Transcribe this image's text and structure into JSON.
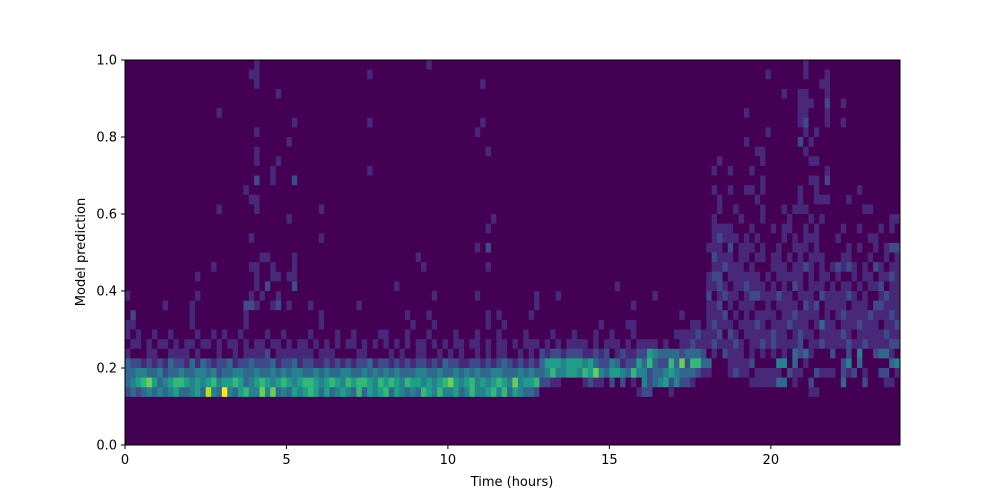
{
  "chart_data": {
    "type": "heatmap",
    "title": "",
    "xlabel": "Time (hours)",
    "ylabel": "Model prediction",
    "xlim": [
      0,
      24
    ],
    "ylim": [
      0,
      1
    ],
    "x_bins": 144,
    "y_bins": 40,
    "x_ticks": [
      "0",
      "5",
      "10",
      "15",
      "20"
    ],
    "x_tick_values": [
      0,
      5,
      10,
      15,
      20
    ],
    "y_ticks": [
      "0.0",
      "0.2",
      "0.4",
      "0.6",
      "0.8",
      "1.0"
    ],
    "y_tick_values": [
      0,
      0.2,
      0.4,
      0.6,
      0.8,
      1.0
    ],
    "colormap": "viridis",
    "color_min": "#440154",
    "color_max": "#fde725",
    "value_max": 9,
    "rows_top_to_bottom": [
      "000000000000 000000000000 100000000000 000000000000 000000001000 000000000000 000000000000 000000000000 000000000000 000000000000 000000100000 000000000000",
      "000000000000 000000000001 100000000000 000000000100 000000000000 000000000000 000000000000 000000000000 000000000000 000000000001 000000100010 000000000000",
      "000000000000 000000000000 100000000000 000000000000 000000000000 000000100000 000000000000 000000000000 000000000000 000000000000 000000000110 000000000000",
      "000000000000 000000000000 000010000000 000000000000 000000000000 000000000000 000000000000 000000000000 000000000000 000000000000 001001100010 000000000000",
      "000000000000 000000000000 000000000000 000000000000 000000000000 000000000000 000000000000 000000000000 000000000000 000000000000 000001110020 010000000000",
      "000000000000 000001000000 000000000000 000000000000 000000000000 000000000000 000000000000 000000000000 000000000000 000000010000 000001100010 000000000000",
      "000000000000 000000000000 000000010000 000000000100 000000000000 000000100000 000000000000 000000000000 000000000000 000000000000 000001200010 010000000000",
      "000000000000 000000000000 100000000000 000000000000 000000000000 000001000000 000000000000 000000000000 000000000000 000000000001 000000101000 000000000000",
      "000000000000 000000000000 000000100000 000000000000 000000000000 000000000000 000000000000 000000000000 000000000000 000000010000 000002010000 000000000000",
      "000000000000 000000000000 100000000000 000000000000 000000000000 000000010000 000000000000 000000000000 000000000000 000000000110 000000100000 000000000000",
      "000000000000 000000000000 100010000000 000000000000 000000000000 000000000000 000000000000 000000000000 000000000000 001000000010 000000011000 000000000000",
      "000000000000 000000000000 000100000000 000000000100 000000000000 000000000000 000000000000 000000000000 000000000000 010010001000 000000000010 000000000000",
      "000000000000 000000000000 200100020000 000000000000 000000000000 000000000000 000000000000 000000000000 000000000000 000000000010 000000011020 000000000000",
      "000000000000 000000000010 000000000000 000000000000 000000000000 000000000000 000000000000 000000000000 000000000000 010010011010 000001001000 000010000000",
      "000000000000 000000000001 100000000000 000000000000 000000000000 000000000000 000000000000 000000000000 000000000000 001000000100 000001001110 001000000000",
      "000000000000 000001000000 100000000000 100000000000 000000000000 000000000000 000000000000 000000000000 000000000000 001001000010 001011100000 000001100000",
      "000000000000 000000000000 000000100000 000000000000 000000000000 000000001000 000000000000 000000000000 000000000000 010000100010 000100010100 000000000011",
      "000000000000 000000000000 000000000000 000000000000 000000000000 000000010000 000000000000 000000000000 000000000000 011110001000 101100101000 010010001010",
      "000000000000 000000000001 000000000000 100000000000 000000000000 000000000000 000000000000 000000000000 000000000000 012111010100 001010111000 100000110000",
      "000000000000 000000000000 000000000000 000000000000 000000000000 000001020000 000000000000 000000000000 000000000000 111020111010 010011101000 001010010122",
      "000000000000 000000000000 011000010000 000000000000 000000100000 000000000000 000000000000 000000000000 000000000000 021110110110 110101011100 011000100101",
      "000000000000 000010000001 100100010000 000000000000 000000010000 000000010000 000000000000 000000000000 000000000000 011211101000 111011210101 212101021011",
      "000000000000 010000000000 100110110000 000000000000 000000000000 000000000000 000000000000 000000000000 000000000000 122011111101 011111010110 100101101121",
      "000000000000 000000000000 102000020000 000000000000 001000000000 000000000000 000000000000 000000010000 000000000000 112101121110 101021011101 011010112011",
      "100000000000 010000000001 010010000000 000000000000 000000000100 000001000000 000010001000 000000000000 001000000000 201211012211 121101110211 112101001211",
      "000000010000 100000000022 100120100010 000000010000 000000000000 000000000000 000010000000 000000000010 000000000000 112010111001 011110212011 110111022111",
      "020000000000 100000000010 000000000000 100000000000 000010001000 000000010100 000100000000 000000000000 000000010000 111201010111 101121111010 121111211121",
      "110000000000 100000000010 000000000000 100000000000 000001000100 000000010010 000000000000 000010000110 000000000110 121110111210 111211101311 011121110112",
      "101001001000 010010100100 001001000010 000100100001 100010001000 010001000100 001000010001 000100100010 000000111121 112021011111 211012110111 121011111211",
      "011010110101 101101011010 110110101101 010101101010 101010110101 011011010110 101110101011 110101110101 111010011211 121112101121 211112011211 112112111122",
      "100011001111 010001001011 112011111110 111000011000 010100110010 101001010110 010102122122 211212012112 254333323332 010211101010 101032310002 002040023310",
      "322121213221 313212231223 222312231221 121212122312 212121221213 221122121232 121213555455 545322431225 363226372663 300011112000 044030100000 024030000034",
      "334433423343 344342334433 433434344334 343344334343 434333443343 343434334433 343433464455 465743554364 423345433321 100012110111 110211002111 021201002201",
      "345675345665 454564556534 565456545665 456546566546 565465545456 754564545654 745562211000 012110202010 423452422100 000000001111 133010020000 030002000110",
      "232343434533 453843943564 474734354565 353454363545 635434365464 453464456463 543320000000 000000000001 220001000000 000000000000 000000011000 000000000000",
      "000000000000 000000000000 000000000000 000000000000 000000000000 000000000000 000000000000 000000000000 000000000000 000000000000 000000000000 000000000000",
      "000000000000 000000000000 000000000000 000000000000 000000000000 000000000000 000000000000 000000000000 000000000000 000000000000 000000000000 000000000000",
      "000000000000 000000000000 000000000000 000000000000 000000000000 000000000000 000000000000 000000000000 000000000000 000000000000 000000000000 000000000000",
      "000000000000 000000000000 000000000000 000000000000 000000000000 000000000000 000000000000 000000000000 000000000000 000000000000 000000000000 000000000000",
      "000000000000 000000000000 000000000000 000000000000 000000000000 000000000000 000000000000 000000000000 000000000000 000000000000 000000000000 000000000000"
    ]
  }
}
